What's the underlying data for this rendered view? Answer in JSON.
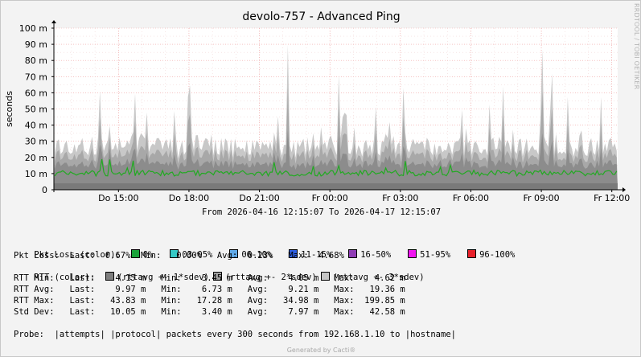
{
  "chart_data": {
    "type": "area",
    "title": "devolo-757 - Advanced Ping",
    "ylabel": "seconds",
    "ylim": [
      0,
      0.1
    ],
    "y_ticks": [
      "0",
      "10 m",
      "20 m",
      "30 m",
      "40 m",
      "50 m",
      "60 m",
      "70 m",
      "80 m",
      "90 m",
      "100 m"
    ],
    "x_ticks": [
      "Do 15:00",
      "Do 18:00",
      "Do 21:00",
      "Fr 00:00",
      "Fr 03:00",
      "Fr 06:00",
      "Fr 09:00",
      "Fr 12:00"
    ],
    "grid": true,
    "sample_interval_seconds": 300,
    "samples_per_hour": 12,
    "series": [
      {
        "name": "rttavg +- 3*sdev",
        "color": "#c8c8c8",
        "typical_upper": 0.03,
        "max": 0.09985
      },
      {
        "name": "rttavg +- 2*sdev",
        "color": "#a8a8a8",
        "typical_upper": 0.022
      },
      {
        "name": "rttavg +- 1*sdev",
        "color": "#8c8c8c",
        "typical_upper": 0.017
      },
      {
        "name": "RTT Avg",
        "color": "#22aa22",
        "last": 0.00997,
        "min": 0.00673,
        "avg": 0.00921,
        "max": 0.01936
      }
    ]
  },
  "header": {
    "title": "devolo-757 - Advanced Ping",
    "side_text": "RRDTOOL / TOBI OETIKER"
  },
  "range_text": "From 2026-04-16 12:15:07 To 2026-04-17 12:15:07",
  "legend": {
    "pkt_loss_label": "Pkt Loss (color):",
    "pkt_loss_colors": [
      {
        "label": "0%",
        "color": "#1aa33a"
      },
      {
        "label": "03-05%",
        "color": "#36c9c6"
      },
      {
        "label": "06-10%",
        "color": "#5fa9e8"
      },
      {
        "label": "11-15%",
        "color": "#2e5ee0"
      },
      {
        "label": "16-50%",
        "color": "#8f3cb5"
      },
      {
        "label": "51-95%",
        "color": "#f014f0"
      },
      {
        "label": "96-100%",
        "color": "#e8202a"
      }
    ],
    "pkt_loss_stats": "Pkt Loss:  Last:  0.67%  Min:   0.00%   Avg:  0.23%   Max:  4.68%",
    "rtt_label": "RTT (color):",
    "rtt_colors": [
      {
        "label": "(rttavg +- 1*sdev)",
        "color": "#7e7e7e"
      },
      {
        "label": "(rttavg +- 2*sdev)",
        "color": "#a0a0a0"
      },
      {
        "label": "(rttavg +- 3*sdev)",
        "color": "#c4c4c4"
      }
    ],
    "rtt_min": "RTT Min:   Last:    4.15 m   Min:    3.45 m   Avg:    4.05 m   Max:    4.62 m",
    "rtt_avg": "RTT Avg:   Last:    9.97 m   Min:    6.73 m   Avg:    9.21 m   Max:   19.36 m",
    "rtt_max": "RTT Max:   Last:   43.83 m   Min:   17.28 m   Avg:   34.98 m   Max:  199.85 m",
    "std_dev": "Std Dev:   Last:   10.05 m   Min:    3.40 m   Avg:    7.97 m   Max:   42.58 m",
    "probe": "Probe:  |attempts| |protocol| packets every 300 seconds from 192.168.1.10 to |hostname|"
  },
  "footer": {
    "credit": "Generated by Cacti®"
  }
}
